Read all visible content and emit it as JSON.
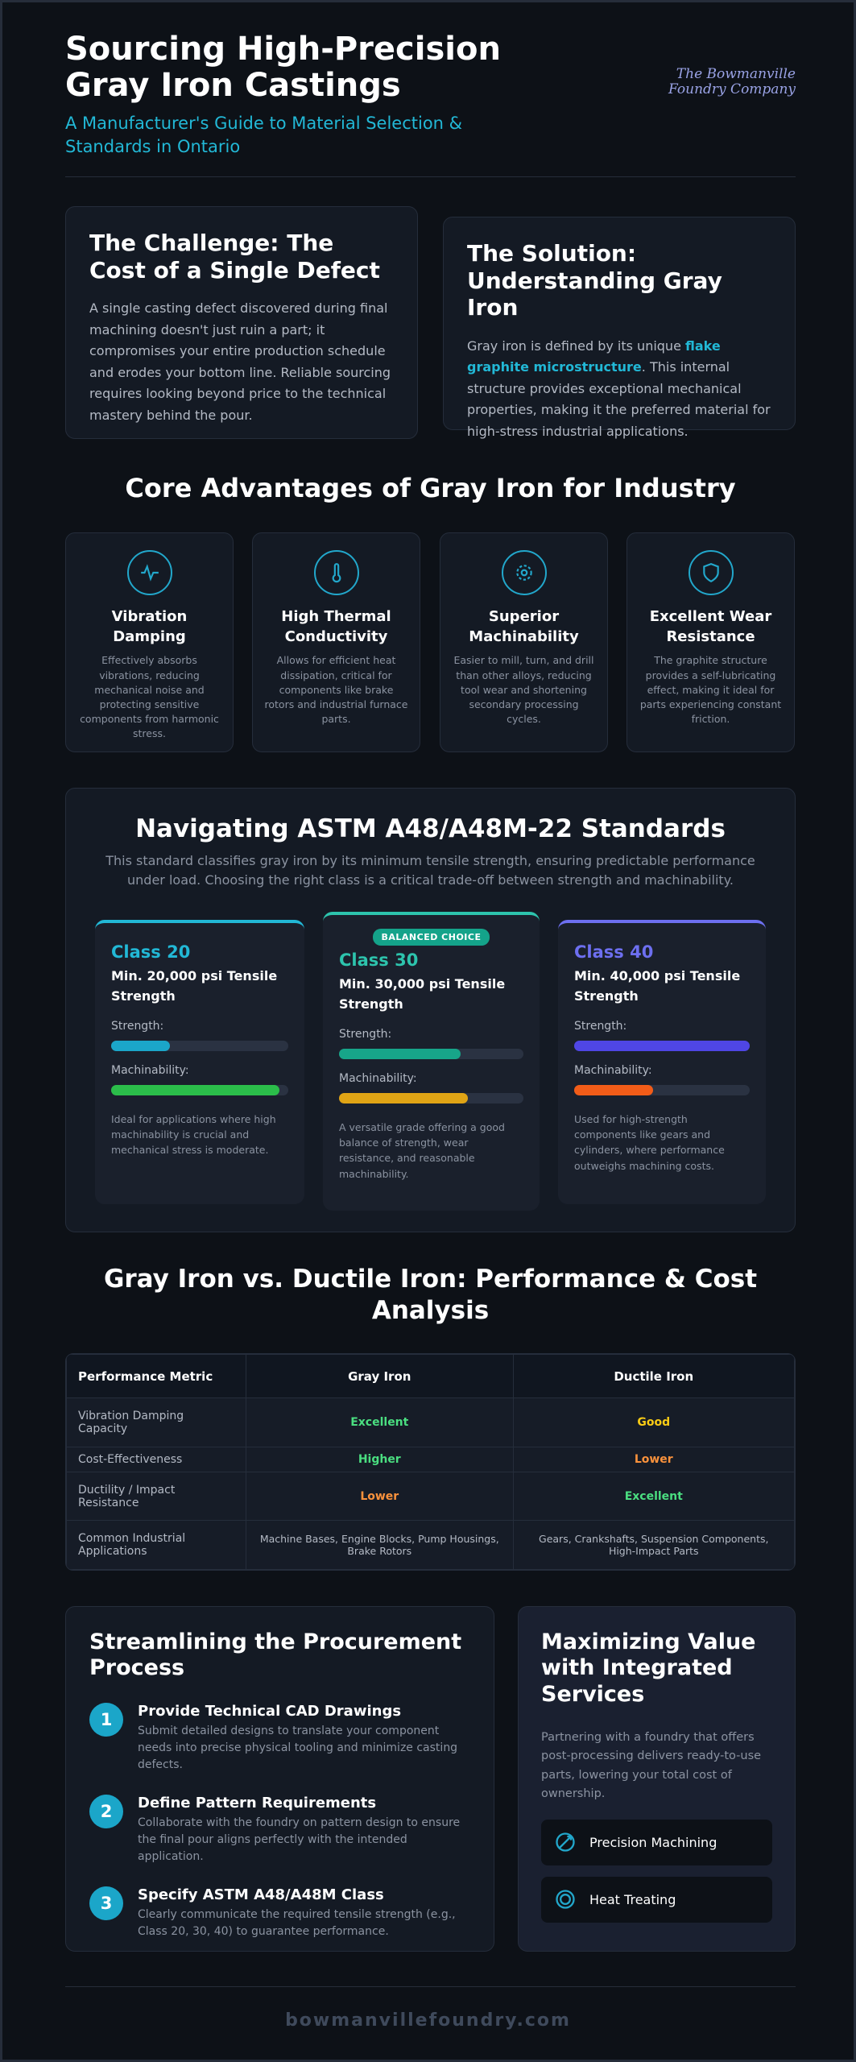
{
  "header": {
    "title": "Sourcing High-Precision Gray Iron Castings",
    "subtitle": "A Manufacturer's Guide to Material Selection & Standards in Ontario",
    "logo": "The Bowmanville Foundry Company"
  },
  "challenge": {
    "title": "The Challenge: The Cost of a Single Defect",
    "body": "A single casting defect discovered during final machining doesn't just ruin a part; it compromises your entire production schedule and erodes your bottom line. Reliable sourcing requires looking beyond price to the technical mastery behind the pour."
  },
  "solution": {
    "title": "The Solution: Understanding Gray Iron",
    "body_before": "Gray iron is defined by its unique ",
    "highlight": "flake graphite microstructure",
    "body_after": ". This internal structure provides exceptional mechanical properties, making it the preferred material for high-stress industrial applications."
  },
  "advantages": {
    "title": "Core Advantages of Gray Iron for Industry",
    "items": [
      {
        "title": "Vibration Damping",
        "description": "Effectively absorbs vibrations, reducing mechanical noise and protecting sensitive components from harmonic stress."
      },
      {
        "title": "High Thermal Conductivity",
        "description": "Allows for efficient heat dissipation, critical for components like brake rotors and industrial furnace parts."
      },
      {
        "title": "Superior Machinability",
        "description": "Easier to mill, turn, and drill than other alloys, reducing tool wear and shortening secondary processing cycles."
      },
      {
        "title": "Excellent Wear Resistance",
        "description": "The graphite structure provides a self-lubricating effect, making it ideal for parts experiencing constant friction."
      }
    ]
  },
  "standards": {
    "title": "Navigating ASTM A48/A48M-22 Standards",
    "description": "This standard classifies gray iron by its minimum tensile strength, ensuring predictable performance under load. Choosing the right class is a critical trade-off between strength and machinability.",
    "classes": [
      {
        "name": "Class 20",
        "spec": "Min. 20,000 psi Tensile Strength",
        "strength_label": "Strength:",
        "strength": 33,
        "strength_color": "#1ba6c9",
        "machinability_label": "Machinability:",
        "machinability": 95,
        "machinability_color": "#2bbd4a",
        "color": "#22b8d6",
        "description": "Ideal for applications where high machinability is crucial and mechanical stress is moderate."
      },
      {
        "badge": "BALANCED CHOICE",
        "name": "Class 30",
        "spec": "Min. 30,000 psi Tensile Strength",
        "strength_label": "Strength:",
        "strength": 66,
        "strength_color": "#17a589",
        "machinability_label": "Machinability:",
        "machinability": 70,
        "machinability_color": "#e0a415",
        "color": "#2dc4ad",
        "description": "A versatile grade offering a good balance of strength, wear resistance, and reasonable machinability."
      },
      {
        "name": "Class 40",
        "spec": "Min. 40,000 psi Tensile Strength",
        "strength_label": "Strength:",
        "strength": 100,
        "strength_color": "#4f46e5",
        "machinability_label": "Machinability:",
        "machinability": 45,
        "machinability_color": "#f25c18",
        "color": "#6d6ff0",
        "description": "Used for high-strength components like gears and cylinders, where performance outweighs machining costs."
      }
    ]
  },
  "comparison": {
    "title": "Gray Iron vs. Ductile Iron: Performance & Cost Analysis",
    "columns": [
      "Performance Metric",
      "Gray Iron",
      "Ductile Iron"
    ],
    "rows": [
      [
        "Vibration Damping Capacity",
        {
          "label": "Excellent",
          "color": "#4ade80"
        },
        {
          "label": "Good",
          "color": "#facc15"
        }
      ],
      [
        "Cost-Effectiveness",
        {
          "label": "Higher",
          "color": "#4ade80"
        },
        {
          "label": "Lower",
          "color": "#fb923c"
        }
      ],
      [
        "Ductility / Impact Resistance",
        {
          "label": "Lower",
          "color": "#fb923c"
        },
        {
          "label": "Excellent",
          "color": "#4ade80"
        }
      ],
      [
        "Common Industrial Applications",
        "Machine Bases, Engine Blocks, Pump Housings, Brake Rotors",
        "Gears, Crankshafts, Suspension Components, High-Impact Parts"
      ]
    ]
  },
  "procurement": {
    "title": "Streamlining the Procurement Process",
    "steps": [
      {
        "number": 1,
        "title": "Provide Technical CAD Drawings",
        "description": "Submit detailed designs to translate your component needs into precise physical tooling and minimize casting defects."
      },
      {
        "number": 2,
        "title": "Define Pattern Requirements",
        "description": "Collaborate with the foundry on pattern design to ensure the final pour aligns perfectly with the intended application."
      },
      {
        "number": 3,
        "title": "Specify ASTM A48/A48M Class",
        "description": "Clearly communicate the required tensile strength (e.g., Class 20, 30, 40) to guarantee performance."
      }
    ]
  },
  "value": {
    "title": "Maximizing Value with Integrated Services",
    "description": "Partnering with a foundry that offers post-processing delivers ready-to-use parts, lowering your total cost of ownership.",
    "services": [
      "Precision Machining",
      "Heat Treating"
    ]
  },
  "footer": {
    "site": "bowmanvillefoundry.com"
  }
}
